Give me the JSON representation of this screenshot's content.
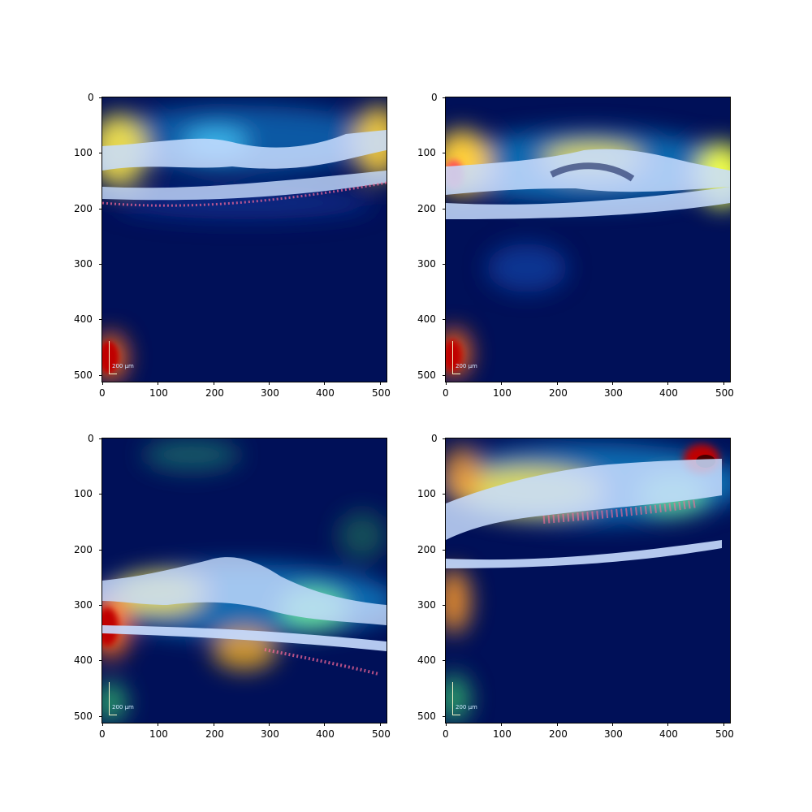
{
  "figure": {
    "panels": [
      {
        "id": "top-left"
      },
      {
        "id": "top-right"
      },
      {
        "id": "bottom-left"
      },
      {
        "id": "bottom-right"
      }
    ],
    "x_ticks": [
      "0",
      "100",
      "200",
      "300",
      "400",
      "500"
    ],
    "y_ticks": [
      "0",
      "100",
      "200",
      "300",
      "400",
      "500"
    ],
    "scale_bar_label": "200 µm",
    "colors": {
      "background_low": "#00104a",
      "heat_mid": "#2fb1ff",
      "heat_high": "#ffff4d",
      "heat_peak": "#c80000",
      "tissue": "#c8ddff"
    }
  }
}
